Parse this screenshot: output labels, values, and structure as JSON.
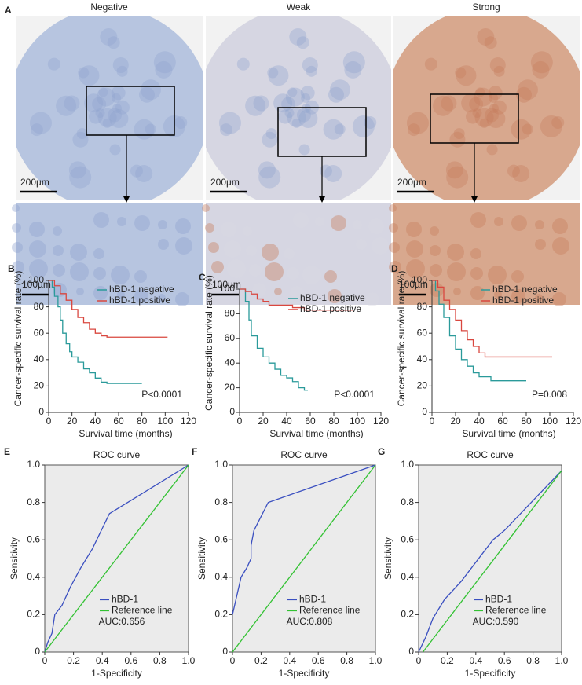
{
  "panel_a": {
    "label": "A",
    "columns": [
      {
        "title": "Negative",
        "scale_top": "200µm",
        "scale_bottom": "100µm",
        "color": "#b7c5e0"
      },
      {
        "title": "Weak",
        "scale_top": "200µm",
        "scale_bottom": "100µm",
        "color": "#d6d6e2"
      },
      {
        "title": "Strong",
        "scale_top": "200µm",
        "scale_bottom": "100µm",
        "color": "#d8a88e"
      }
    ]
  },
  "chart_data": [
    {
      "type": "line",
      "step": true,
      "label": "B",
      "y_label": "Cancer-specific survival rate (%)",
      "x_label": "Survival time (months)",
      "annotation": "P<0.0001",
      "xlim": [
        0,
        120
      ],
      "xticks": [
        0,
        20,
        40,
        60,
        80,
        100,
        120
      ],
      "ylim": [
        0,
        100
      ],
      "yticks": [
        0,
        20,
        40,
        60,
        80,
        100
      ],
      "series": [
        {
          "name": "hBD-1 negative",
          "color": "#2a9a9a",
          "x": [
            0,
            3,
            5,
            8,
            10,
            12,
            15,
            18,
            20,
            25,
            30,
            35,
            40,
            45,
            50,
            80
          ],
          "values": [
            100,
            95,
            88,
            80,
            70,
            60,
            52,
            46,
            42,
            38,
            33,
            30,
            26,
            23,
            22,
            22
          ]
        },
        {
          "name": "hBD-1 positive",
          "color": "#d9473f",
          "x": [
            0,
            5,
            10,
            15,
            20,
            25,
            30,
            35,
            40,
            45,
            50,
            60,
            80,
            102
          ],
          "values": [
            100,
            96,
            90,
            85,
            78,
            72,
            68,
            63,
            60,
            58,
            57,
            57,
            57,
            57
          ]
        }
      ]
    },
    {
      "type": "line",
      "step": true,
      "label": "C",
      "y_label": "Cancer-specific survival rate (%)",
      "x_label": "Survival time (months)",
      "annotation": "P<0.0001",
      "xlim": [
        0,
        120
      ],
      "xticks": [
        0,
        20,
        40,
        60,
        80,
        100,
        120
      ],
      "ylim": [
        0,
        100
      ],
      "yticks": [
        0,
        20,
        40,
        60,
        80,
        100
      ],
      "series": [
        {
          "name": "hBD-1 negative",
          "color": "#2a9a9a",
          "x": [
            0,
            5,
            8,
            10,
            15,
            20,
            25,
            30,
            35,
            40,
            45,
            50,
            55,
            58
          ],
          "values": [
            100,
            90,
            75,
            62,
            52,
            45,
            40,
            35,
            30,
            28,
            25,
            20,
            18,
            18
          ]
        },
        {
          "name": "hBD-1 positive",
          "color": "#d9473f",
          "x": [
            0,
            5,
            10,
            15,
            20,
            25,
            45,
            55,
            96
          ],
          "values": [
            100,
            98,
            96,
            92,
            90,
            87,
            85,
            83,
            83
          ]
        }
      ]
    },
    {
      "type": "line",
      "step": true,
      "label": "D",
      "y_label": "Cancer-specific survival rate (%)",
      "x_label": "Survival time (months)",
      "annotation": "P=0.008",
      "xlim": [
        0,
        120
      ],
      "xticks": [
        0,
        20,
        40,
        60,
        80,
        100,
        120
      ],
      "ylim": [
        0,
        100
      ],
      "yticks": [
        0,
        20,
        40,
        60,
        80,
        100
      ],
      "series": [
        {
          "name": "hBD-1 negative",
          "color": "#2a9a9a",
          "x": [
            0,
            3,
            6,
            10,
            15,
            20,
            25,
            30,
            35,
            40,
            50,
            80
          ],
          "values": [
            100,
            92,
            82,
            72,
            58,
            48,
            40,
            35,
            30,
            27,
            24,
            24
          ]
        },
        {
          "name": "hBD-1 positive",
          "color": "#d9473f",
          "x": [
            0,
            5,
            10,
            15,
            20,
            25,
            30,
            35,
            40,
            45,
            60,
            102
          ],
          "values": [
            100,
            95,
            85,
            78,
            70,
            62,
            55,
            50,
            45,
            42,
            42,
            42
          ]
        }
      ]
    },
    {
      "type": "line",
      "step": false,
      "label": "E",
      "title": "ROC curve",
      "y_label": "Sensitivity",
      "x_label": "1-Specificity",
      "annotation": "AUC:0.656",
      "xlim": [
        0,
        1
      ],
      "xticks": [
        0,
        0.2,
        0.4,
        0.6,
        0.8,
        {
          "value": 1,
          "label": "1.0"
        }
      ],
      "ylim": [
        0,
        1
      ],
      "yticks": [
        0,
        0.2,
        0.4,
        0.6,
        0.8,
        {
          "value": 1,
          "label": "1.0"
        }
      ],
      "series": [
        {
          "name": "hBD-1",
          "color": "#3a4fc0",
          "x": [
            0,
            0.02,
            0.05,
            0.07,
            0.12,
            0.18,
            0.25,
            0.33,
            0.45,
            1
          ],
          "values": [
            0,
            0.05,
            0.1,
            0.2,
            0.25,
            0.35,
            0.45,
            0.55,
            0.74,
            1
          ]
        },
        {
          "name": "Reference line",
          "color": "#33c233",
          "x": [
            0,
            1
          ],
          "values": [
            0,
            1
          ]
        }
      ]
    },
    {
      "type": "line",
      "step": false,
      "label": "F",
      "title": "ROC curve",
      "y_label": "Sensitivity",
      "x_label": "1-Specificity",
      "annotation": "AUC:0.808",
      "xlim": [
        0,
        1
      ],
      "xticks": [
        0,
        0.2,
        0.4,
        0.6,
        0.8,
        {
          "value": 1,
          "label": "1.0"
        }
      ],
      "ylim": [
        0,
        1
      ],
      "yticks": [
        0,
        0.2,
        0.4,
        0.6,
        0.8,
        {
          "value": 1,
          "label": "1.0"
        }
      ],
      "series": [
        {
          "name": "hBD-1",
          "color": "#3a4fc0",
          "x": [
            0,
            0.03,
            0.06,
            0.1,
            0.13,
            0.13,
            0.15,
            0.25,
            1
          ],
          "values": [
            0.2,
            0.3,
            0.4,
            0.45,
            0.5,
            0.57,
            0.65,
            0.8,
            1
          ]
        },
        {
          "name": "Reference line",
          "color": "#33c233",
          "x": [
            0,
            1
          ],
          "values": [
            0,
            1
          ]
        }
      ]
    },
    {
      "type": "line",
      "step": false,
      "label": "G",
      "title": "ROC curve",
      "y_label": "Sensitivity",
      "x_label": "1-Specificity",
      "annotation": "AUC:0.590",
      "xlim": [
        0,
        1
      ],
      "xticks": [
        0,
        0.2,
        0.4,
        0.6,
        0.8,
        {
          "value": 1,
          "label": "1.0"
        }
      ],
      "ylim": [
        0,
        1
      ],
      "yticks": [
        0,
        0.2,
        0.4,
        0.6,
        0.8,
        {
          "value": 1,
          "label": "1.0"
        }
      ],
      "series": [
        {
          "name": "hBD-1",
          "color": "#3a4fc0",
          "x": [
            0,
            0.05,
            0.1,
            0.18,
            0.3,
            0.4,
            0.52,
            0.6,
            1
          ],
          "values": [
            0,
            0.08,
            0.18,
            0.28,
            0.38,
            0.48,
            0.6,
            0.65,
            0.97
          ]
        },
        {
          "name": "Reference line",
          "color": "#33c233",
          "x": [
            0.03,
            1
          ],
          "values": [
            0,
            0.97
          ]
        }
      ]
    }
  ]
}
